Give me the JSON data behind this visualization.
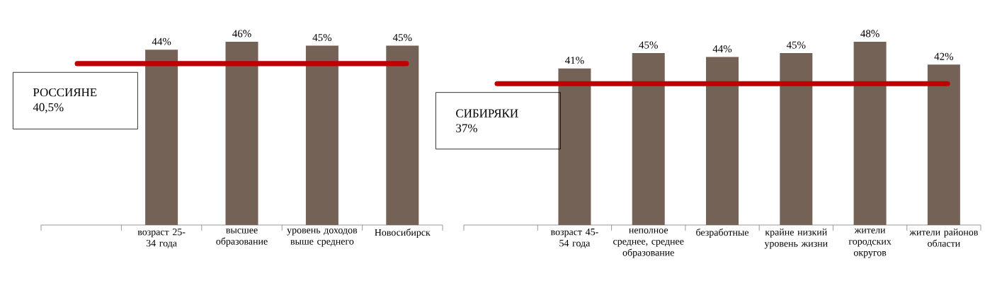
{
  "chart_data": [
    {
      "type": "bar",
      "categories": [
        null,
        "возраст 25-34 года",
        "высшее образование",
        "уровень доходов выше среднего",
        "Новосибирск"
      ],
      "values": [
        null,
        44,
        46,
        45,
        45
      ],
      "value_labels": [
        null,
        "44%",
        "46%",
        "45%",
        "45%"
      ],
      "color": "#756257",
      "ref_lines": [
        {
          "axis": "y",
          "value": 40.5,
          "label": "РОССИЯНЕ 40,5%",
          "color": "#c00000"
        }
      ]
    },
    {
      "type": "bar",
      "categories": [
        null,
        "возраст 45-54 года",
        "неполное среднее, среднее образование",
        "безработные",
        "крайне низкий уровень жизни",
        "жители городских округов",
        "жители районов области"
      ],
      "values": [
        null,
        41,
        45,
        44,
        45,
        48,
        42
      ],
      "value_labels": [
        null,
        "41%",
        "45%",
        "44%",
        "45%",
        "48%",
        "42%"
      ],
      "color": "#756257",
      "ref_lines": [
        {
          "axis": "y",
          "value": 37,
          "label": "СИБИРЯКИ 37%",
          "color": "#c00000"
        }
      ]
    }
  ]
}
